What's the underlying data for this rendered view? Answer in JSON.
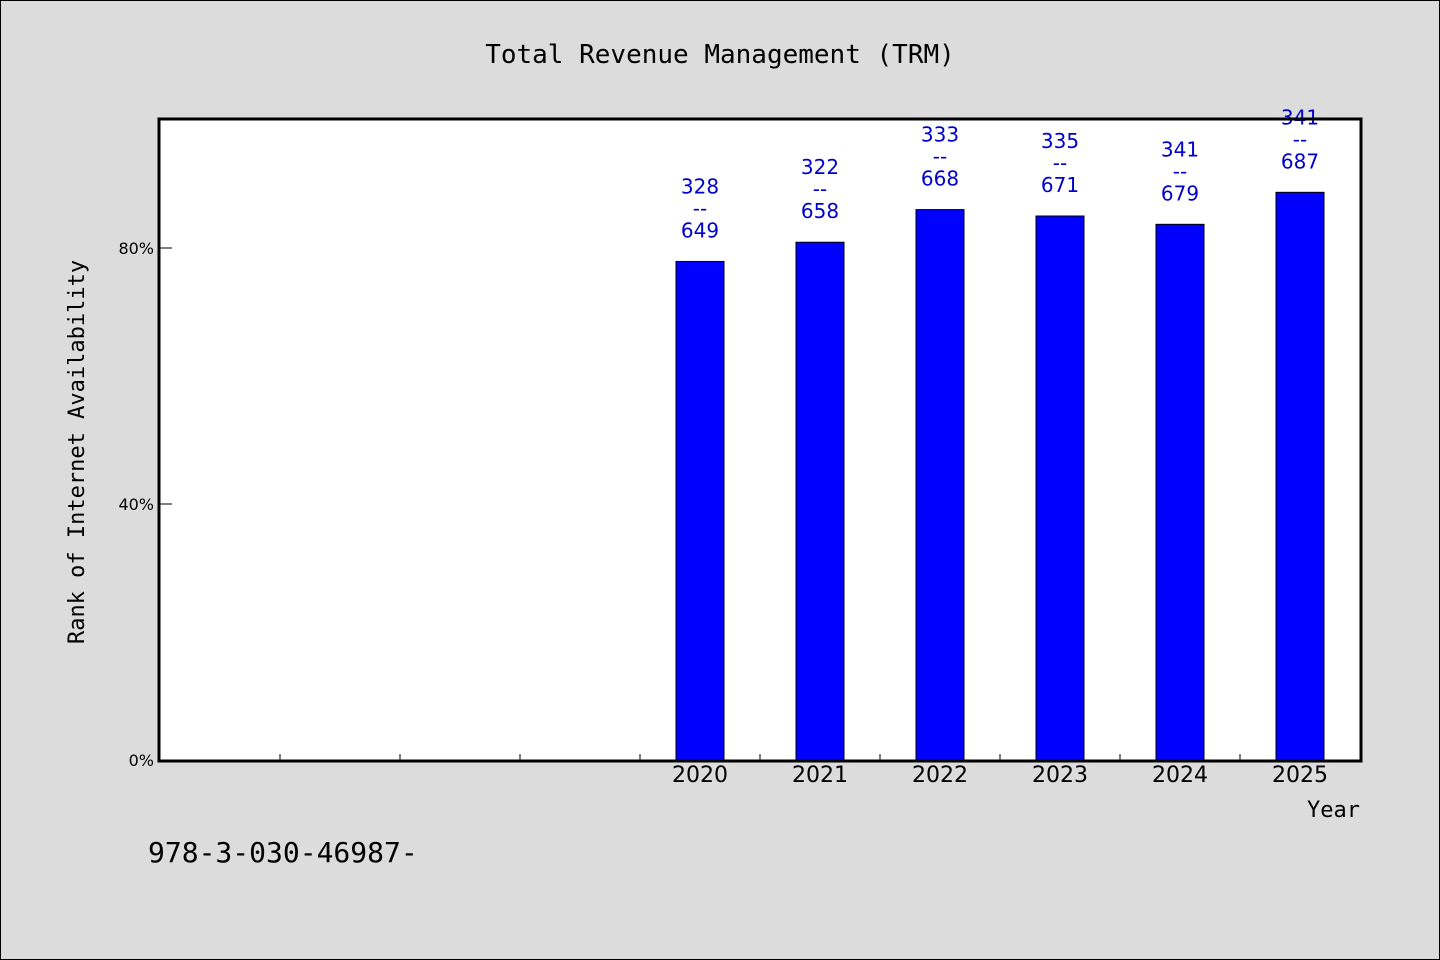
{
  "chart_data": {
    "type": "bar",
    "title": "Total Revenue Management (TRM)",
    "xlabel": "Year",
    "ylabel": "Rank of Internet Availability",
    "categories": [
      "",
      "",
      "",
      "",
      "2020",
      "2021",
      "2022",
      "2023",
      "2024",
      "2025"
    ],
    "values": [
      null,
      null,
      null,
      null,
      77.9,
      80.9,
      86.0,
      85.0,
      83.7,
      88.7
    ],
    "data_labels": [
      null,
      null,
      null,
      null,
      [
        "328",
        "--",
        "649"
      ],
      [
        "322",
        "--",
        "658"
      ],
      [
        "333",
        "--",
        "668"
      ],
      [
        "335",
        "--",
        "671"
      ],
      [
        "341",
        "--",
        "679"
      ],
      [
        "341",
        "--",
        "687"
      ]
    ],
    "ylim": [
      0,
      100
    ],
    "yticks": [
      {
        "value": 0,
        "label": "0%"
      },
      {
        "value": 40,
        "label": "40%"
      },
      {
        "value": 80,
        "label": "80%"
      }
    ],
    "grid": false,
    "legend": "none",
    "bar_color": "#0000ff",
    "label_color": "#0000cc"
  },
  "footer_text": "978-3-030-46987-"
}
